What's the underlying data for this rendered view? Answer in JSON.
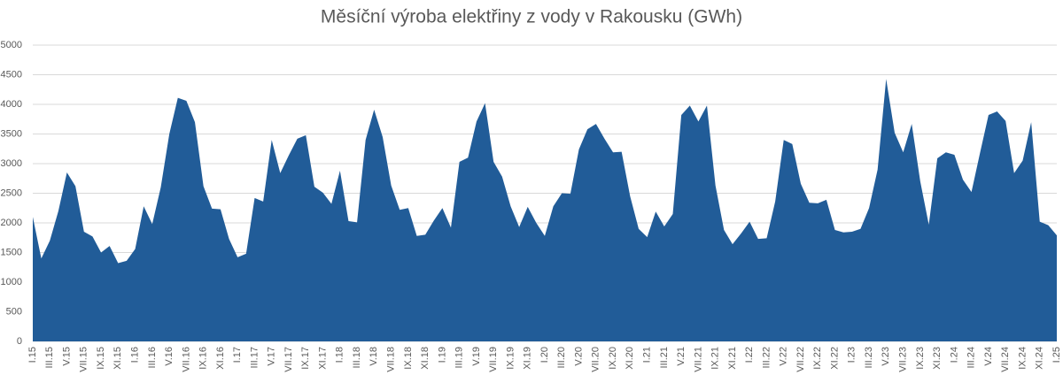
{
  "chart_data": {
    "type": "area",
    "title": "Měsíční výroba elektřiny z vody v Rakousku (GWh)",
    "categories": [
      "I.15",
      null,
      "III.15",
      null,
      "V.15",
      null,
      "VII.15",
      null,
      "IX.15",
      null,
      "XI.15",
      null,
      "I.16",
      null,
      "III.16",
      null,
      "V.16",
      null,
      "VII.16",
      null,
      "IX.16",
      null,
      "XI.16",
      null,
      "I.17",
      null,
      "III.17",
      null,
      "V.17",
      null,
      "VII.17",
      null,
      "IX.17",
      null,
      "XI.17",
      null,
      "I.18",
      null,
      "III.18",
      null,
      "V.18",
      null,
      "VII.18",
      null,
      "IX.18",
      null,
      "XI.18",
      null,
      "I.19",
      null,
      "III.19",
      null,
      "V.19",
      null,
      "VII.19",
      null,
      "IX.19",
      null,
      "XI.19",
      null,
      "I.20",
      null,
      "III.20",
      null,
      "V.20",
      null,
      "VII.20",
      null,
      "IX.20",
      null,
      "XI.20",
      null,
      "I.21",
      null,
      "III.21",
      null,
      "V.21",
      null,
      "VII.21",
      null,
      "IX.21",
      null,
      "XI.21",
      null,
      "I.22",
      null,
      "III.22",
      null,
      "V.22",
      null,
      "VII.22",
      null,
      "IX.22",
      null,
      "XI.22",
      null,
      "I.23",
      null,
      "III.23",
      null,
      "V.23",
      null,
      "VII.23",
      null,
      "IX.23",
      null,
      "XI.23",
      null,
      "I.24",
      null,
      "III.24",
      null,
      "V.24",
      null,
      "VII.24",
      null,
      "IX.24",
      null,
      "XI.24",
      null,
      "I.25"
    ],
    "values": [
      2100,
      1400,
      1700,
      2200,
      2850,
      2620,
      1850,
      1770,
      1500,
      1610,
      1320,
      1360,
      1560,
      2280,
      1980,
      2600,
      3500,
      4110,
      4060,
      3700,
      2620,
      2240,
      2230,
      1730,
      1420,
      1480,
      2420,
      2360,
      3400,
      2840,
      3140,
      3420,
      3480,
      2610,
      2510,
      2320,
      2880,
      2030,
      2010,
      3400,
      3910,
      3450,
      2630,
      2220,
      2250,
      1780,
      1800,
      2040,
      2250,
      1920,
      3030,
      3100,
      3710,
      4020,
      3030,
      2780,
      2280,
      1930,
      2270,
      2000,
      1780,
      2280,
      2500,
      2490,
      3240,
      3580,
      3670,
      3420,
      3190,
      3200,
      2450,
      1900,
      1760,
      2190,
      1940,
      2150,
      3820,
      3980,
      3710,
      3980,
      2630,
      1880,
      1640,
      1820,
      2020,
      1730,
      1740,
      2360,
      3400,
      3330,
      2660,
      2340,
      2330,
      2390,
      1880,
      1840,
      1850,
      1900,
      2250,
      2900,
      4430,
      3520,
      3190,
      3670,
      2700,
      1970,
      3090,
      3190,
      3150,
      2730,
      2520,
      3180,
      3820,
      3880,
      3720,
      2840,
      3050,
      3700,
      2020,
      1960,
      1790
    ],
    "color": "#215c98",
    "ylim": [
      0,
      5000
    ],
    "yticks": [
      0,
      500,
      1000,
      1500,
      2000,
      2500,
      3000,
      3500,
      4000,
      4500,
      5000
    ],
    "grid": true
  }
}
